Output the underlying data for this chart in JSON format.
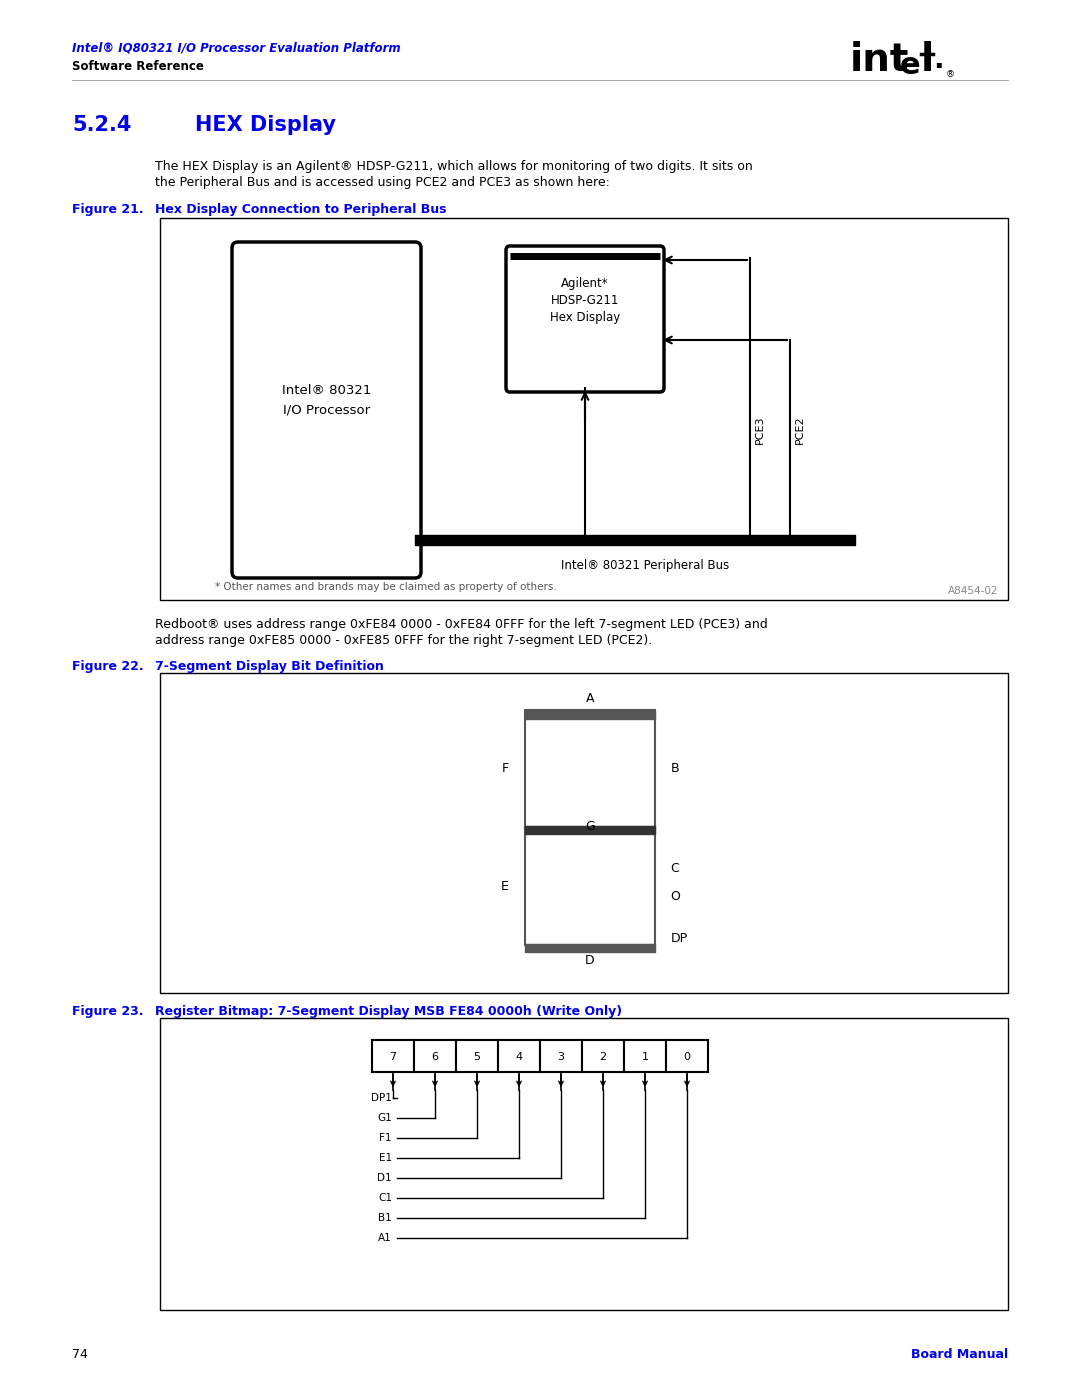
{
  "page_title_line1": "Intel® IQ80321 I/O Processor Evaluation Platform",
  "page_title_line2": "Software Reference",
  "section_number": "5.2.4",
  "section_title": "HEX Display",
  "body_text1_a": "The HEX Display is an Agilent® HDSP-G211, which allows for monitoring of two digits. It sits on",
  "body_text1_b": "the Peripheral Bus and is accessed using PCE2 and PCE3 as shown here:",
  "fig21_label": "Figure 21.",
  "fig21_title": "Hex Display Connection to Peripheral Bus",
  "body_text2_a": "Redboot® uses address range 0xFE84 0000 - 0xFE84 0FFF for the left 7-segment LED (PCE3) and",
  "body_text2_b": "address range 0xFE85 0000 - 0xFE85 0FFF for the right 7-segment LED (PCE2).",
  "fig22_label": "Figure 22.",
  "fig22_title": "7-Segment Display Bit Definition",
  "fig23_label": "Figure 23.",
  "fig23_title": "Register Bitmap: 7-Segment Display MSB FE84 0000h (Write Only)",
  "footnote": "* Other names and brands may be claimed as property of others.",
  "watermark": "A8454-02",
  "page_number": "74",
  "page_footer": "Board Manual",
  "blue_color": "#0000EE",
  "text_color": "#000000",
  "background": "#FFFFFF",
  "intel_proc_label1": "Intel® 80321",
  "intel_proc_label2": "I/O Processor",
  "hdsp_label1": "Agilent*",
  "hdsp_label2": "HDSP-G211",
  "hdsp_label3": "Hex Display",
  "bus_label": "Intel® 80321 Peripheral Bus",
  "pce3_label": "PCE3",
  "pce2_label": "PCE2",
  "bit_labels": [
    "DP1",
    "G1",
    "F1",
    "E1",
    "D1",
    "C1",
    "B1",
    "A1"
  ]
}
